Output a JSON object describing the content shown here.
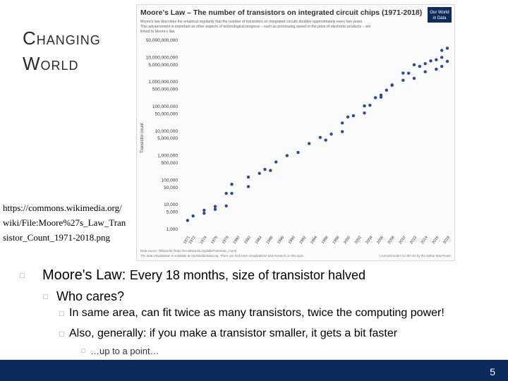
{
  "slide": {
    "title_line1": "Changing",
    "title_line2": "World",
    "source_url": "https://commons.wikimedia.org/wiki/File:Moore%27s_Law_Transistor_Count_1971-2018.png",
    "page_number": "5"
  },
  "chart_header": {
    "title": "Moore's Law – The number of transistors on integrated circuit chips (1971-2018)",
    "subtitle_line1": "Moore's law describes the empirical regularity that the number of transistors on integrated circuits doubles approximately every two years.",
    "subtitle_line2": "This advancement is important as other aspects of technological progress – such as processing speed or the price of electronic products – are",
    "subtitle_line3": "linked to Moore's law.",
    "logo_line1": "Our World",
    "logo_line2": "in Data",
    "source_note": "Data source: Wikipedia (https://en.wikipedia.org/wiki/Transistor_count)",
    "viz_note": "The data visualization is available at OurWorldinData.org. There you find more visualizations and research on this topic.",
    "license_note": "Licensed under CC-BY-SA by the author Max Roser."
  },
  "chart_data": {
    "type": "scatter",
    "title": "Moore's Law – The number of transistors on integrated circuit chips (1971-2018)",
    "ylabel": "Transistor count",
    "xlabel": "",
    "y_scale": "log",
    "ylim": [
      1000,
      50000000000
    ],
    "xlim": [
      1970,
      2018
    ],
    "y_ticks": [
      "50,000,000,000",
      "10,000,000,000",
      "5,000,000,000",
      "1,000,000,000",
      "500,000,000",
      "100,000,000",
      "50,000,000",
      "10,000,000",
      "5,000,000",
      "1,000,000",
      "500,000",
      "100,000",
      "50,000",
      "10,000",
      "5,000",
      "1,000"
    ],
    "y_tick_values": [
      50000000000,
      10000000000,
      5000000000,
      1000000000,
      500000000,
      100000000,
      50000000,
      10000000,
      5000000,
      1000000,
      500000,
      100000,
      50000,
      10000,
      5000,
      1000
    ],
    "x_ticks": [
      "1971",
      "1972",
      "1974",
      "1976",
      "1978",
      "1980",
      "1982",
      "1984",
      "1986",
      "1988",
      "1990",
      "1992",
      "1994",
      "1996",
      "1998",
      "2000",
      "2002",
      "2004",
      "2006",
      "2008",
      "2010",
      "2012",
      "2014",
      "2016",
      "2018"
    ],
    "x_tick_values": [
      1971,
      1972,
      1974,
      1976,
      1978,
      1980,
      1982,
      1984,
      1986,
      1988,
      1990,
      1992,
      1994,
      1996,
      1998,
      2000,
      2002,
      2004,
      2006,
      2008,
      2010,
      2012,
      2014,
      2016,
      2018
    ],
    "grid": false,
    "legend": "none",
    "point_color": "#2d4a9a",
    "points": [
      {
        "x": 1971,
        "y": 2300
      },
      {
        "x": 1972,
        "y": 3500
      },
      {
        "x": 1974,
        "y": 4500
      },
      {
        "x": 1974,
        "y": 6000
      },
      {
        "x": 1976,
        "y": 6500
      },
      {
        "x": 1976,
        "y": 8500
      },
      {
        "x": 1978,
        "y": 9000
      },
      {
        "x": 1978,
        "y": 29000
      },
      {
        "x": 1979,
        "y": 29000
      },
      {
        "x": 1979,
        "y": 68000
      },
      {
        "x": 1982,
        "y": 55000
      },
      {
        "x": 1982,
        "y": 134000
      },
      {
        "x": 1984,
        "y": 190000
      },
      {
        "x": 1985,
        "y": 275000
      },
      {
        "x": 1986,
        "y": 250000
      },
      {
        "x": 1987,
        "y": 553000
      },
      {
        "x": 1989,
        "y": 1000000
      },
      {
        "x": 1991,
        "y": 1350000
      },
      {
        "x": 1993,
        "y": 3100000
      },
      {
        "x": 1995,
        "y": 5500000
      },
      {
        "x": 1996,
        "y": 4300000
      },
      {
        "x": 1997,
        "y": 7500000
      },
      {
        "x": 1999,
        "y": 9500000
      },
      {
        "x": 1999,
        "y": 21300000
      },
      {
        "x": 2000,
        "y": 37500000
      },
      {
        "x": 2001,
        "y": 42000000
      },
      {
        "x": 2003,
        "y": 105900000
      },
      {
        "x": 2003,
        "y": 54300000
      },
      {
        "x": 2004,
        "y": 112000000
      },
      {
        "x": 2005,
        "y": 228000000
      },
      {
        "x": 2006,
        "y": 291000000
      },
      {
        "x": 2006,
        "y": 241000000
      },
      {
        "x": 2007,
        "y": 463000000
      },
      {
        "x": 2008,
        "y": 758000000
      },
      {
        "x": 2008,
        "y": 731000000
      },
      {
        "x": 2010,
        "y": 1170000000
      },
      {
        "x": 2010,
        "y": 2300000000
      },
      {
        "x": 2011,
        "y": 2270000000
      },
      {
        "x": 2012,
        "y": 1400000000
      },
      {
        "x": 2012,
        "y": 5000000000
      },
      {
        "x": 2013,
        "y": 4310000000
      },
      {
        "x": 2014,
        "y": 2600000000
      },
      {
        "x": 2014,
        "y": 5560000000
      },
      {
        "x": 2015,
        "y": 7200000000
      },
      {
        "x": 2016,
        "y": 3300000000
      },
      {
        "x": 2016,
        "y": 8000000000
      },
      {
        "x": 2017,
        "y": 19200000000
      },
      {
        "x": 2017,
        "y": 4300000000
      },
      {
        "x": 2017,
        "y": 10000000000
      },
      {
        "x": 2018,
        "y": 6900000000
      },
      {
        "x": 2018,
        "y": 23600000000
      }
    ]
  },
  "bullets": {
    "main_head": "Moore's Law:",
    "main_rest": "Every 18 months, size of transistor halved",
    "sub": "Who cares?",
    "sub_a": "In same area, can fit twice as many transistors, twice the computing power!",
    "sub_b": "Also, generally: if you make a transistor smaller, it gets a bit faster",
    "sub_b_note": "…up to a point…",
    "glyph": "□"
  }
}
